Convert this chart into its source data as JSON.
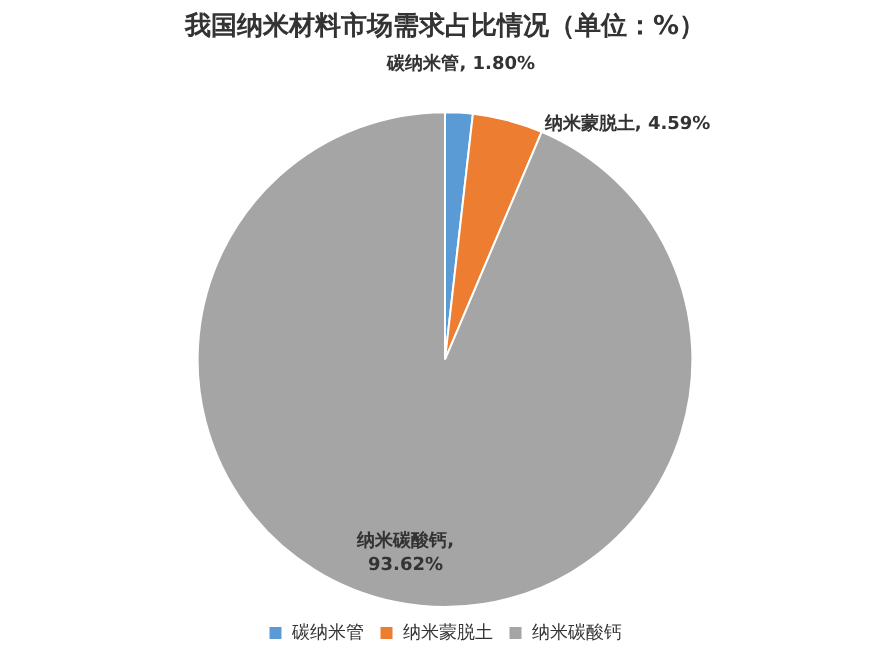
{
  "chart_data": {
    "type": "pie",
    "title": "我国纳米材料市场需求占比情况（单位：%）",
    "categories": [
      "碳纳米管",
      "纳米蒙脱土",
      "纳米碳酸钙"
    ],
    "values": [
      1.8,
      4.59,
      93.62
    ],
    "value_labels": [
      "碳纳米管, 1.80%",
      "纳米蒙脱土, 4.59%",
      "纳米碳酸钙, 93.62%"
    ],
    "colors": [
      "#5b9bd5",
      "#ed7d31",
      "#a5a5a5"
    ],
    "legend": "bottom"
  }
}
